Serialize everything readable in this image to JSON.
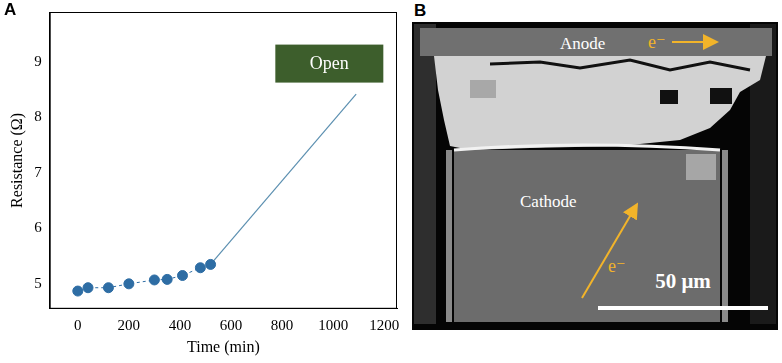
{
  "panel_labels": [
    "A",
    "B"
  ],
  "chart_data": {
    "type": "line",
    "x_label": "Time (min)",
    "y_label": "Resistance (Ω)",
    "xlim": [
      -110,
      1250
    ],
    "xticks": [
      0,
      200,
      400,
      600,
      800,
      1000,
      1200
    ],
    "ylim": [
      4.55,
      9.9
    ],
    "yticks": [
      5,
      6,
      7,
      8,
      9
    ],
    "grid": false,
    "series": [
      {
        "x": [
          0,
          40,
          120,
          200,
          300,
          350,
          410,
          480,
          520
        ],
        "values": [
          4.87,
          4.93,
          4.93,
          5.0,
          5.07,
          5.08,
          5.15,
          5.29,
          5.35
        ],
        "color": "#2e6da4",
        "marker": "circle",
        "line_style": "dashed"
      },
      {
        "x": [
          520,
          1090
        ],
        "values": [
          5.35,
          8.42
        ],
        "color": "#5b8fb0",
        "marker": "none",
        "line_style": "solid"
      }
    ],
    "annotations": [
      {
        "text": "Open",
        "x": 985,
        "y": 8.97,
        "color": "#3d5e2c"
      }
    ]
  },
  "micrograph": {
    "anode": "Anode",
    "cathode": "Cathode",
    "electron_labels": [
      "e⁻",
      "e⁻"
    ],
    "scale_bar": "50 μm"
  }
}
